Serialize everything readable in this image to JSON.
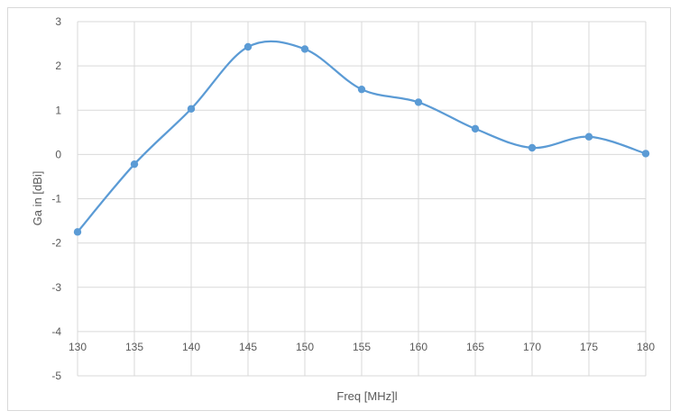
{
  "chart_data": {
    "type": "line",
    "title": "",
    "xlabel": "Freq [MHz]l",
    "ylabel": "Ga in [dBi]",
    "x": [
      130,
      135,
      140,
      145,
      150,
      155,
      160,
      165,
      170,
      175,
      180
    ],
    "series": [
      {
        "values": [
          -1.75,
          -0.22,
          1.03,
          2.43,
          2.38,
          1.47,
          1.18,
          0.58,
          0.15,
          0.4,
          0.02
        ]
      }
    ],
    "xlim": [
      130,
      180
    ],
    "ylim": [
      -5,
      3
    ],
    "xticks": [
      "130",
      "135",
      "140",
      "145",
      "150",
      "155",
      "160",
      "165",
      "170",
      "175",
      "180"
    ],
    "yticks": [
      "3",
      "2",
      "1",
      "0",
      "-1",
      "-2",
      "-3",
      "-4",
      "-5"
    ],
    "grid": true,
    "line_color": "#5b9bd5",
    "grid_color": "#d9d9d9",
    "smooth": true,
    "markers": true
  }
}
